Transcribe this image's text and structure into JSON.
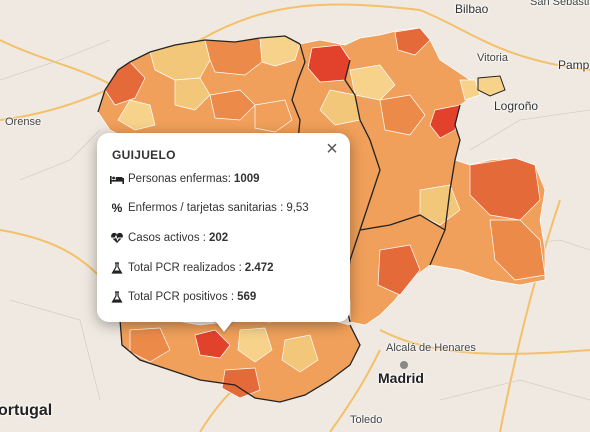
{
  "places": {
    "bilbao": "Bilbao",
    "san_sebastian": "San Sebastián",
    "vitoria": "Vitoria",
    "logrono": "Logroño",
    "pamplona": "Pamp",
    "orense": "Orense",
    "portugal": "ortugal",
    "alcala": "Alcalá de Henares",
    "madrid": "Madrid",
    "toledo": "Toledo"
  },
  "popup": {
    "title": "GUIJUELO",
    "close_symbol": "×",
    "rows": [
      {
        "icon": "bed-icon",
        "label": "Personas enfermas:",
        "value": "1009"
      },
      {
        "icon": "percent-icon",
        "label": "Enfermos / tarjetas sanitarias :",
        "value": "9,53"
      },
      {
        "icon": "heartbeat-icon",
        "label": "Casos activos :",
        "value": "202"
      },
      {
        "icon": "flask-icon",
        "label": "Total PCR realizados :",
        "value": "2.472"
      },
      {
        "icon": "flask-icon",
        "label": "Total PCR positivos :",
        "value": "569"
      }
    ]
  },
  "colors": {
    "land": "#efe9e1",
    "light": "#f6d28a",
    "pale": "#f3c77a",
    "mid": "#f0a05a",
    "orange": "#ec8a4a",
    "dark": "#e56a3a",
    "red": "#e2422c"
  }
}
